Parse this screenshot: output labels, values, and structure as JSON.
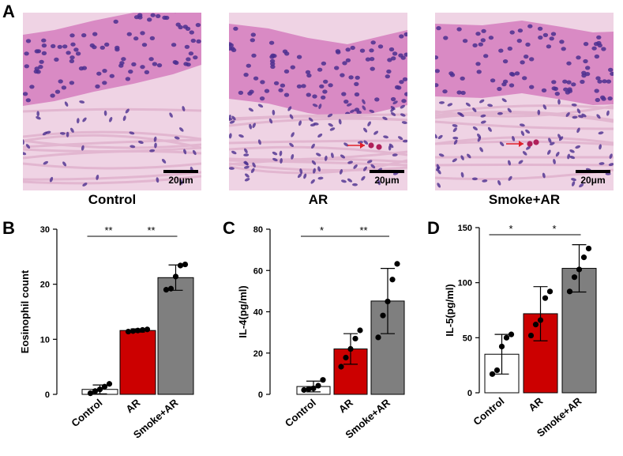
{
  "panel_a": {
    "letter": "A",
    "images": [
      {
        "caption": "Control",
        "scale_bar": "20μm",
        "arrow": false
      },
      {
        "caption": "AR",
        "scale_bar": "20μm",
        "arrow": true
      },
      {
        "caption": "Smoke+AR",
        "scale_bar": "20μm",
        "arrow": true
      }
    ],
    "colors": {
      "nucleus": "#4b2f8f",
      "cytoplasm": "#d98ac4",
      "stroma": "#efd3e4",
      "arrow": "#e0202a"
    }
  },
  "chart_data": [
    {
      "letter": "B",
      "type": "bar",
      "categories": [
        "Control",
        "AR",
        "Smoke+AR"
      ],
      "values": [
        0.9,
        11.6,
        21.2
      ],
      "errors": [
        0.8,
        0.3,
        2.3
      ],
      "points": [
        [
          0.2,
          0.6,
          0.9,
          1.4,
          1.9
        ],
        [
          11.4,
          11.5,
          11.6,
          11.7,
          11.8
        ],
        [
          19.0,
          19.2,
          21.4,
          23.4,
          23.6
        ]
      ],
      "ylabel": "Eosinophil count",
      "ylim": [
        0,
        30
      ],
      "yticks": [
        0,
        10,
        20,
        30
      ],
      "significance": [
        {
          "from": 0,
          "to": 1,
          "label": "**"
        },
        {
          "from": 1,
          "to": 2,
          "label": "**"
        }
      ],
      "colors": [
        "#ffffff",
        "#cc0000",
        "#7f7f7f"
      ]
    },
    {
      "letter": "C",
      "type": "bar",
      "categories": [
        "Control",
        "AR",
        "Smoke+AR"
      ],
      "values": [
        3.8,
        22.0,
        45.2
      ],
      "errors": [
        2.6,
        7.4,
        15.8
      ],
      "points": [
        [
          2.1,
          2.6,
          2.9,
          4.2,
          7.0
        ],
        [
          13.4,
          17.8,
          22.0,
          27.0,
          31.0
        ],
        [
          27.6,
          38.2,
          45.0,
          55.6,
          63.2
        ]
      ],
      "ylabel": "IL-4(pg/ml)",
      "ylim": [
        0,
        80
      ],
      "yticks": [
        0,
        20,
        40,
        60,
        80
      ],
      "significance": [
        {
          "from": 0,
          "to": 1,
          "label": "*"
        },
        {
          "from": 1,
          "to": 2,
          "label": "**"
        }
      ],
      "colors": [
        "#ffffff",
        "#cc0000",
        "#7f7f7f"
      ]
    },
    {
      "letter": "D",
      "type": "bar",
      "categories": [
        "Control",
        "AR",
        "Smoke+AR"
      ],
      "values": [
        35.0,
        71.8,
        113.0
      ],
      "errors": [
        18.0,
        24.6,
        21.5
      ],
      "points": [
        [
          17.0,
          20.5,
          42.0,
          50.0,
          53.0
        ],
        [
          52.0,
          62.0,
          66.0,
          86.0,
          92.0
        ],
        [
          92.0,
          105.0,
          112.0,
          123.0,
          131.0
        ]
      ],
      "ylabel": "IL-5(pg/ml)",
      "ylim": [
        0,
        150
      ],
      "yticks": [
        0,
        50,
        100,
        150
      ],
      "significance": [
        {
          "from": 0,
          "to": 1,
          "label": "*"
        },
        {
          "from": 1,
          "to": 2,
          "label": "*"
        }
      ],
      "colors": [
        "#ffffff",
        "#cc0000",
        "#7f7f7f"
      ]
    }
  ]
}
